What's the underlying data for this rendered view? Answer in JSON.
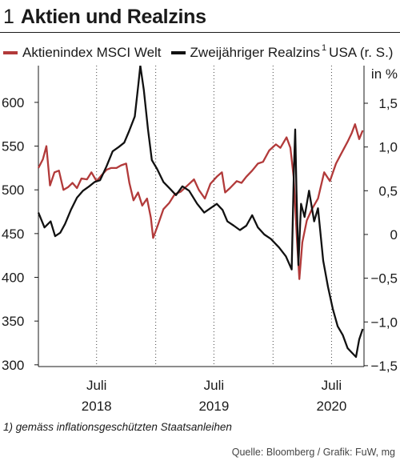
{
  "header": {
    "number": "1",
    "title": "Aktien und Realzins"
  },
  "legend": {
    "items": [
      {
        "label": "Aktienindex MSCI Welt",
        "color": "#b23a3a"
      },
      {
        "label": "Zweijähriger Realzins",
        "sup": "1",
        "suffix": "USA (r. S.)",
        "color": "#111111"
      }
    ]
  },
  "footnote": "1) gemäss inflationsgeschützten Staatsanleihen",
  "source": "Quelle: Bloomberg / Grafik: FuW, mg",
  "chart_data": {
    "type": "line",
    "unit_right": "in %",
    "left_axis": {
      "ticks": [
        300,
        350,
        400,
        450,
        500,
        550,
        600
      ],
      "range": [
        298,
        642
      ]
    },
    "right_axis": {
      "ticks": [
        "−1,5",
        "−1,0",
        "−0,5",
        "0",
        "0,5",
        "1,0",
        "1,5"
      ],
      "tick_values": [
        -1.5,
        -1.0,
        -0.5,
        0,
        0.5,
        1.0,
        1.5
      ],
      "range": [
        -1.51,
        1.93
      ]
    },
    "x_axis": {
      "range": [
        "2018-01-01",
        "2020-10-10"
      ],
      "labels": [
        {
          "month": "Juli",
          "year": "2018"
        },
        {
          "month": "Juli",
          "year": "2019"
        },
        {
          "month": "Juli",
          "year": "2020"
        }
      ],
      "label_dates": [
        "2018-07-01",
        "2019-07-01",
        "2020-07-01"
      ],
      "year_boundaries": [
        "2019-01-01",
        "2020-01-01"
      ]
    },
    "series": [
      {
        "name": "Aktienindex MSCI Welt",
        "axis": "left",
        "color": "#b23a3a",
        "points": [
          [
            "2018-01-01",
            525
          ],
          [
            "2018-01-15",
            535
          ],
          [
            "2018-01-26",
            550
          ],
          [
            "2018-02-06",
            505
          ],
          [
            "2018-02-20",
            520
          ],
          [
            "2018-03-06",
            522
          ],
          [
            "2018-03-20",
            500
          ],
          [
            "2018-04-03",
            503
          ],
          [
            "2018-04-17",
            508
          ],
          [
            "2018-05-01",
            502
          ],
          [
            "2018-05-15",
            513
          ],
          [
            "2018-06-01",
            512
          ],
          [
            "2018-06-15",
            520
          ],
          [
            "2018-07-01",
            510
          ],
          [
            "2018-07-15",
            516
          ],
          [
            "2018-08-01",
            523
          ],
          [
            "2018-08-15",
            525
          ],
          [
            "2018-09-01",
            525
          ],
          [
            "2018-09-15",
            528
          ],
          [
            "2018-10-01",
            530
          ],
          [
            "2018-10-11",
            508
          ],
          [
            "2018-10-24",
            488
          ],
          [
            "2018-11-07",
            497
          ],
          [
            "2018-11-20",
            482
          ],
          [
            "2018-12-05",
            490
          ],
          [
            "2018-12-17",
            468
          ],
          [
            "2018-12-24",
            445
          ],
          [
            "2019-01-08",
            460
          ],
          [
            "2019-01-25",
            478
          ],
          [
            "2019-02-12",
            485
          ],
          [
            "2019-03-01",
            495
          ],
          [
            "2019-03-20",
            498
          ],
          [
            "2019-04-10",
            505
          ],
          [
            "2019-04-30",
            512
          ],
          [
            "2019-05-15",
            500
          ],
          [
            "2019-06-03",
            490
          ],
          [
            "2019-06-20",
            507
          ],
          [
            "2019-07-10",
            515
          ],
          [
            "2019-07-26",
            520
          ],
          [
            "2019-08-05",
            497
          ],
          [
            "2019-08-20",
            502
          ],
          [
            "2019-09-10",
            510
          ],
          [
            "2019-09-25",
            508
          ],
          [
            "2019-10-10",
            515
          ],
          [
            "2019-10-28",
            522
          ],
          [
            "2019-11-15",
            530
          ],
          [
            "2019-12-01",
            532
          ],
          [
            "2019-12-20",
            545
          ],
          [
            "2020-01-10",
            552
          ],
          [
            "2020-01-24",
            548
          ],
          [
            "2020-02-12",
            560
          ],
          [
            "2020-02-24",
            548
          ],
          [
            "2020-03-05",
            515
          ],
          [
            "2020-03-16",
            440
          ],
          [
            "2020-03-23",
            398
          ],
          [
            "2020-04-01",
            440
          ],
          [
            "2020-04-15",
            465
          ],
          [
            "2020-05-01",
            478
          ],
          [
            "2020-05-20",
            490
          ],
          [
            "2020-06-08",
            520
          ],
          [
            "2020-06-26",
            510
          ],
          [
            "2020-07-15",
            530
          ],
          [
            "2020-08-01",
            542
          ],
          [
            "2020-08-20",
            555
          ],
          [
            "2020-09-02",
            565
          ],
          [
            "2020-09-12",
            575
          ],
          [
            "2020-09-25",
            558
          ],
          [
            "2020-10-06",
            568
          ]
        ]
      },
      {
        "name": "Zweijähriger Realzins USA (r. S.)",
        "axis": "right",
        "color": "#111111",
        "points": [
          [
            "2018-01-01",
            0.25
          ],
          [
            "2018-01-20",
            0.08
          ],
          [
            "2018-02-08",
            0.15
          ],
          [
            "2018-02-22",
            -0.02
          ],
          [
            "2018-03-10",
            0.02
          ],
          [
            "2018-03-25",
            0.12
          ],
          [
            "2018-04-12",
            0.28
          ],
          [
            "2018-05-01",
            0.42
          ],
          [
            "2018-05-20",
            0.5
          ],
          [
            "2018-06-08",
            0.55
          ],
          [
            "2018-06-25",
            0.6
          ],
          [
            "2018-07-12",
            0.62
          ],
          [
            "2018-08-01",
            0.78
          ],
          [
            "2018-08-20",
            0.95
          ],
          [
            "2018-09-08",
            1.0
          ],
          [
            "2018-09-25",
            1.05
          ],
          [
            "2018-10-10",
            1.18
          ],
          [
            "2018-10-28",
            1.35
          ],
          [
            "2018-11-08",
            1.72
          ],
          [
            "2018-11-14",
            1.93
          ],
          [
            "2018-11-25",
            1.65
          ],
          [
            "2018-12-08",
            1.2
          ],
          [
            "2018-12-20",
            0.85
          ],
          [
            "2019-01-05",
            0.75
          ],
          [
            "2019-01-25",
            0.6
          ],
          [
            "2019-02-15",
            0.52
          ],
          [
            "2019-03-05",
            0.45
          ],
          [
            "2019-03-25",
            0.55
          ],
          [
            "2019-04-15",
            0.5
          ],
          [
            "2019-05-10",
            0.35
          ],
          [
            "2019-06-01",
            0.25
          ],
          [
            "2019-06-20",
            0.3
          ],
          [
            "2019-07-10",
            0.35
          ],
          [
            "2019-07-28",
            0.28
          ],
          [
            "2019-08-12",
            0.15
          ],
          [
            "2019-09-01",
            0.1
          ],
          [
            "2019-09-20",
            0.05
          ],
          [
            "2019-10-10",
            0.1
          ],
          [
            "2019-10-28",
            0.22
          ],
          [
            "2019-11-15",
            0.08
          ],
          [
            "2019-12-05",
            0.0
          ],
          [
            "2019-12-25",
            -0.05
          ],
          [
            "2020-01-20",
            -0.15
          ],
          [
            "2020-02-10",
            -0.25
          ],
          [
            "2020-02-28",
            -0.4
          ],
          [
            "2020-03-06",
            0.75
          ],
          [
            "2020-03-10",
            1.2
          ],
          [
            "2020-03-14",
            0.5
          ],
          [
            "2020-03-20",
            -0.35
          ],
          [
            "2020-03-28",
            0.35
          ],
          [
            "2020-04-08",
            0.2
          ],
          [
            "2020-04-22",
            0.5
          ],
          [
            "2020-05-08",
            0.15
          ],
          [
            "2020-05-20",
            0.3
          ],
          [
            "2020-06-05",
            -0.3
          ],
          [
            "2020-06-20",
            -0.6
          ],
          [
            "2020-07-05",
            -0.85
          ],
          [
            "2020-07-20",
            -1.05
          ],
          [
            "2020-08-05",
            -1.15
          ],
          [
            "2020-08-20",
            -1.3
          ],
          [
            "2020-09-02",
            -1.35
          ],
          [
            "2020-09-15",
            -1.4
          ],
          [
            "2020-09-25",
            -1.2
          ],
          [
            "2020-10-06",
            -1.08
          ]
        ]
      }
    ]
  }
}
